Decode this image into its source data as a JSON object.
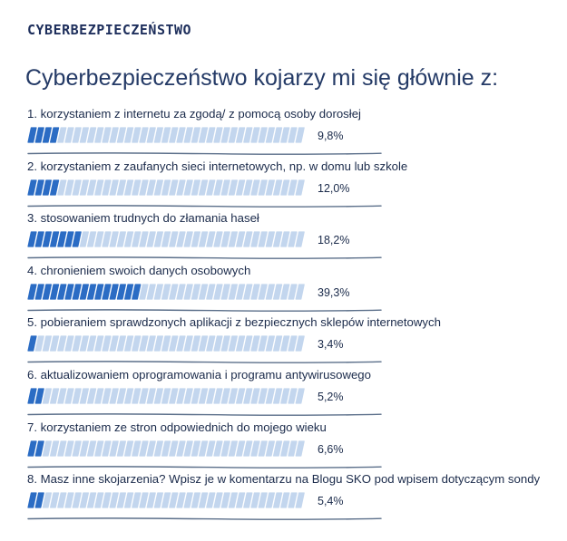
{
  "header": {
    "label": "CYBERBEZPIECZEŃSTWO"
  },
  "poll": {
    "question": "Cyberbezpieczeństwo kojarzy mi się głównie z:",
    "options": [
      {
        "label": "1. korzystaniem z internetu za zgodą/ z pomocą osoby dorosłej",
        "percent": 9.8,
        "percent_text": "9,8%"
      },
      {
        "label": "2. korzystaniem z zaufanych sieci internetowych, np. w domu lub szkole",
        "percent": 12.0,
        "percent_text": "12,0%"
      },
      {
        "label": "3. stosowaniem trudnych do złamania haseł",
        "percent": 18.2,
        "percent_text": "18,2%"
      },
      {
        "label": "4. chronieniem swoich danych osobowych",
        "percent": 39.3,
        "percent_text": "39,3%"
      },
      {
        "label": "5. pobieraniem sprawdzonych aplikacji z bezpiecznych sklepów internetowych",
        "percent": 3.4,
        "percent_text": "3,4%"
      },
      {
        "label": "6. aktualizowaniem oprogramowania i programu antywirusowego",
        "percent": 5.2,
        "percent_text": "5,2%"
      },
      {
        "label": "7. korzystaniem ze stron odpowiednich do mojego wieku",
        "percent": 6.6,
        "percent_text": "6,6%"
      },
      {
        "label": "8. Masz inne skojarzenia? Wpisz je w komentarzu na Blogu SKO pod wpisem dotyczącym sondy",
        "percent": 5.4,
        "percent_text": "5,4%"
      }
    ]
  },
  "colors": {
    "filled_stripe": "#2b6cc4",
    "empty_stripe": "#c3d6ee",
    "divider": "#5b6f8a",
    "text": "#1a2a4a"
  }
}
